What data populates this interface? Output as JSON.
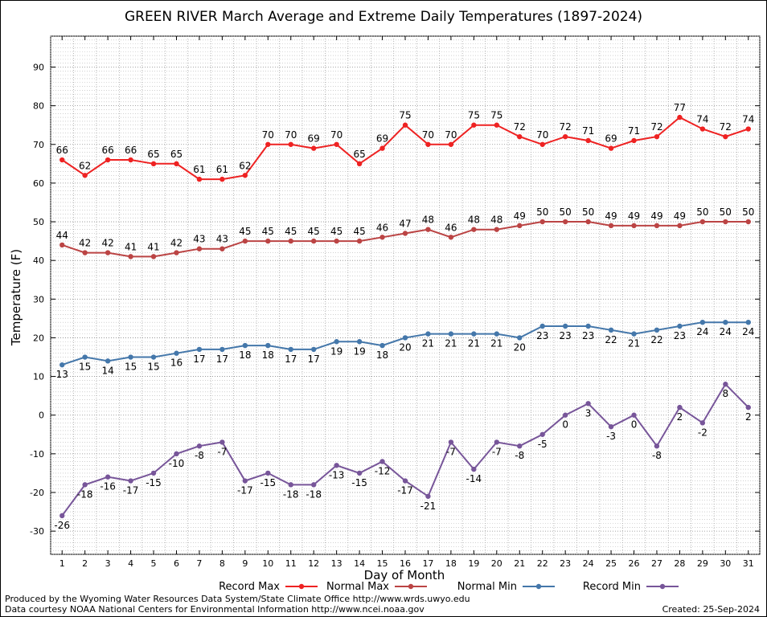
{
  "chart_data": {
    "type": "line",
    "title": "GREEN RIVER March Average and Extreme Daily Temperatures (1897-2024)",
    "xlabel": "Day of Month",
    "ylabel": "Temperature (F)",
    "categories": [
      1,
      2,
      3,
      4,
      5,
      6,
      7,
      8,
      9,
      10,
      11,
      12,
      13,
      14,
      15,
      16,
      17,
      18,
      19,
      20,
      21,
      22,
      23,
      24,
      25,
      26,
      27,
      28,
      29,
      30,
      31
    ],
    "ylim": [
      -36,
      98
    ],
    "yticks": [
      -30,
      -20,
      -10,
      0,
      10,
      20,
      30,
      40,
      50,
      60,
      70,
      80,
      90
    ],
    "grid": true,
    "legend_position": "bottom",
    "series": [
      {
        "name": "Record Max",
        "color": "#ee2222",
        "label_position": "above",
        "values": [
          66,
          62,
          66,
          66,
          65,
          65,
          61,
          61,
          62,
          70,
          70,
          69,
          70,
          65,
          69,
          75,
          70,
          70,
          75,
          75,
          72,
          70,
          72,
          71,
          69,
          71,
          72,
          77,
          74,
          72,
          74
        ]
      },
      {
        "name": "Normal Max",
        "color": "#bb4444",
        "label_position": "above",
        "values": [
          44,
          42,
          42,
          41,
          41,
          42,
          43,
          43,
          45,
          45,
          45,
          45,
          45,
          45,
          46,
          47,
          48,
          46,
          48,
          48,
          49,
          50,
          50,
          50,
          49,
          49,
          49,
          49,
          50,
          50,
          50
        ]
      },
      {
        "name": "Normal Min",
        "color": "#4477aa",
        "label_position": "below",
        "values": [
          13,
          15,
          14,
          15,
          15,
          16,
          17,
          17,
          18,
          18,
          17,
          17,
          19,
          19,
          18,
          20,
          21,
          21,
          21,
          21,
          20,
          23,
          23,
          23,
          22,
          21,
          22,
          23,
          24,
          24,
          24
        ]
      },
      {
        "name": "Record Min",
        "color": "#775599",
        "label_position": "below",
        "values": [
          -26,
          -18,
          -16,
          -17,
          -15,
          -10,
          -8,
          -7,
          -17,
          -15,
          -18,
          -18,
          -13,
          -15,
          -12,
          -17,
          -21,
          -7,
          -14,
          -7,
          -8,
          -5,
          0,
          3,
          -3,
          0,
          -8,
          2,
          -2,
          8,
          2
        ]
      }
    ]
  },
  "footer": {
    "produced_by": "Produced by the Wyoming Water Resources Data System/State Climate Office http://www.wrds.uwyo.edu",
    "courtesy": "Data courtesy NOAA National Centers for Environmental Information http://www.ncei.noaa.gov",
    "created": "Created:  25-Sep-2024"
  }
}
